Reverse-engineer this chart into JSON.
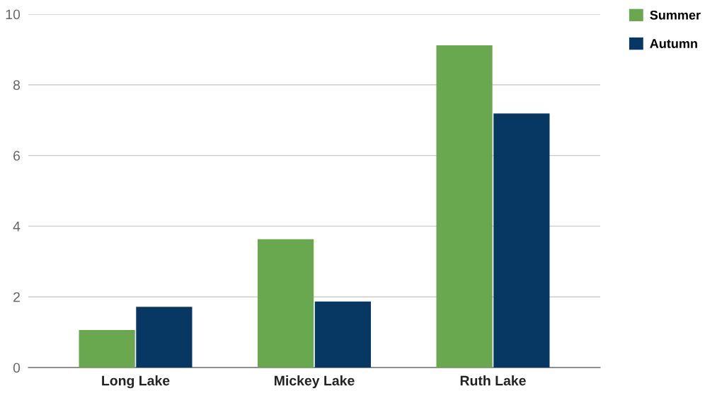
{
  "chart_data": {
    "type": "bar",
    "categories": [
      "Long Lake",
      "Mickey Lake",
      "Ruth Lake"
    ],
    "series": [
      {
        "name": "Summer",
        "color": "#6aa84f",
        "values": [
          1.06,
          3.63,
          9.12
        ]
      },
      {
        "name": "Autumn",
        "color": "#073763",
        "values": [
          1.72,
          1.87,
          7.19
        ]
      }
    ],
    "ylim": [
      0,
      10
    ],
    "yticks": [
      0,
      2,
      4,
      6,
      8,
      10
    ],
    "grid": "y",
    "legend": "top right"
  }
}
